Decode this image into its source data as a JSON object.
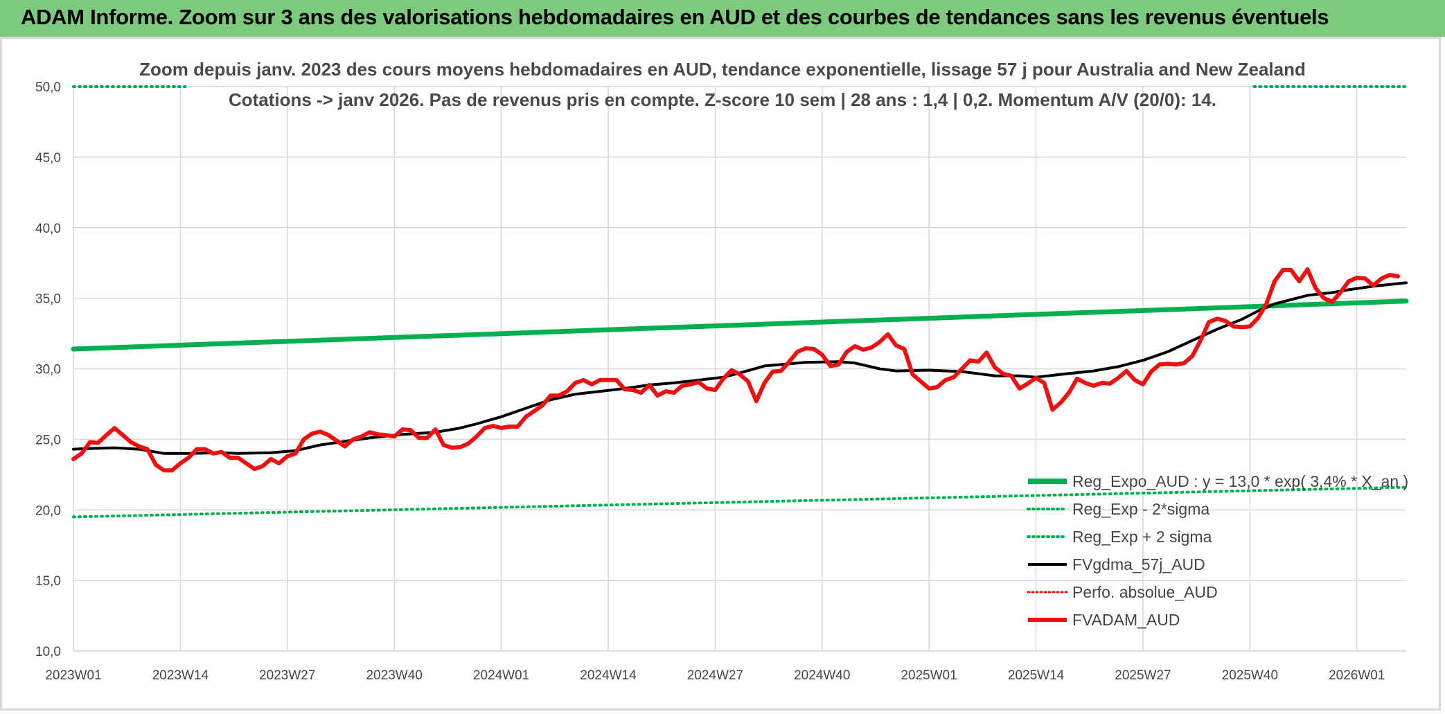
{
  "header": {
    "title": "ADAM Informe. Zoom sur 3 ans des valorisations hebdomadaires en AUD et des courbes de tendances sans les revenus éventuels"
  },
  "colors": {
    "header_bg": "#7dc97d",
    "reg": "#00b050",
    "fv": "#000000",
    "adam": "#ee1111",
    "grid": "#d9d9d9"
  },
  "chart_data": {
    "type": "line",
    "title": "Zoom depuis janv. 2023 des cours moyens hebdomadaires en AUD, tendance exponentielle, lissage 57 j pour Australia and New Zealand",
    "subtitle": "Cotations -> janv 2026. Pas de revenus pris en compte. Z-score 10 sem | 28 ans : 1,4 | 0,2. Momentum A/V (20/0): 14.",
    "ylim": [
      10,
      50
    ],
    "y_ticks": [
      "10,0",
      "15,0",
      "20,0",
      "25,0",
      "30,0",
      "35,0",
      "40,0",
      "45,0",
      "50,0"
    ],
    "x_ticks": [
      "2023W01",
      "2023W14",
      "2023W27",
      "2023W40",
      "2024W01",
      "2024W14",
      "2024W27",
      "2024W40",
      "2025W01",
      "2025W14",
      "2025W27",
      "2025W40",
      "2026W01"
    ],
    "grid": true,
    "legend_position": "bottom-right",
    "series": [
      {
        "name": "Reg_Expo_AUD : y = 13,0 * exp( 3,4% * X_an )",
        "style": "solid-thick",
        "color": "#00b050",
        "points": [
          [
            0,
            31.4
          ],
          [
            162,
            34.8
          ]
        ]
      },
      {
        "name": "Reg_Exp - 2*sigma",
        "style": "dotted",
        "color": "#00b050",
        "points": [
          [
            0,
            19.5
          ],
          [
            162,
            21.6
          ]
        ]
      },
      {
        "name": "Reg_Exp + 2 sigma",
        "style": "dotted",
        "color": "#00b050",
        "points": [
          [
            0,
            50
          ],
          [
            13.6,
            50
          ],
          null,
          [
            143.5,
            50
          ],
          [
            162,
            50
          ]
        ]
      },
      {
        "name": "FVgdma_57j_AUD",
        "style": "solid",
        "color": "#000000",
        "points": [
          [
            0,
            24.3
          ],
          [
            2,
            24.35
          ],
          [
            5,
            24.4
          ],
          [
            8,
            24.3
          ],
          [
            10,
            24.1
          ],
          [
            11,
            24.0
          ],
          [
            14,
            24.0
          ],
          [
            18,
            24.05
          ],
          [
            20,
            24.0
          ],
          [
            24,
            24.05
          ],
          [
            27,
            24.2
          ],
          [
            30,
            24.6
          ],
          [
            33,
            24.85
          ],
          [
            36,
            25.1
          ],
          [
            40,
            25.35
          ],
          [
            44,
            25.5
          ],
          [
            47,
            25.8
          ],
          [
            49,
            26.1
          ],
          [
            52,
            26.6
          ],
          [
            55,
            27.2
          ],
          [
            58,
            27.8
          ],
          [
            61,
            28.2
          ],
          [
            64,
            28.4
          ],
          [
            67,
            28.6
          ],
          [
            70,
            28.85
          ],
          [
            73,
            29.0
          ],
          [
            76,
            29.2
          ],
          [
            79,
            29.4
          ],
          [
            81,
            29.7
          ],
          [
            84,
            30.2
          ],
          [
            86,
            30.3
          ],
          [
            89,
            30.45
          ],
          [
            93,
            30.5
          ],
          [
            95,
            30.4
          ],
          [
            98,
            30.0
          ],
          [
            100,
            29.85
          ],
          [
            104,
            29.9
          ],
          [
            108,
            29.8
          ],
          [
            112,
            29.5
          ],
          [
            115,
            29.5
          ],
          [
            117,
            29.4
          ],
          [
            120,
            29.6
          ],
          [
            124,
            29.85
          ],
          [
            127,
            30.15
          ],
          [
            130,
            30.6
          ],
          [
            133,
            31.2
          ],
          [
            136,
            32.0
          ],
          [
            139,
            32.8
          ],
          [
            142,
            33.5
          ],
          [
            144,
            34.1
          ],
          [
            146,
            34.6
          ],
          [
            148,
            34.9
          ],
          [
            150,
            35.2
          ],
          [
            153,
            35.4
          ],
          [
            155,
            35.6
          ],
          [
            158,
            35.85
          ],
          [
            162,
            36.1
          ]
        ]
      },
      {
        "name": "Perfo. absolue_AUD",
        "style": "dotted",
        "color": "#ee1111",
        "points": []
      },
      {
        "name": "FVADAM_AUD",
        "style": "solid-thick",
        "color": "#ee1111",
        "points": [
          [
            0,
            23.6
          ],
          [
            1,
            24.0
          ],
          [
            2,
            24.8
          ],
          [
            3,
            24.75
          ],
          [
            4,
            25.3
          ],
          [
            5,
            25.8
          ],
          [
            6,
            25.3
          ],
          [
            7,
            24.8
          ],
          [
            8,
            24.5
          ],
          [
            9,
            24.3
          ],
          [
            10,
            23.2
          ],
          [
            11,
            22.8
          ],
          [
            12,
            22.8
          ],
          [
            13,
            23.3
          ],
          [
            14,
            23.7
          ],
          [
            15,
            24.3
          ],
          [
            16,
            24.3
          ],
          [
            17,
            24.0
          ],
          [
            18,
            24.1
          ],
          [
            19,
            23.7
          ],
          [
            20,
            23.7
          ],
          [
            21,
            23.3
          ],
          [
            22,
            22.9
          ],
          [
            23,
            23.1
          ],
          [
            24,
            23.6
          ],
          [
            25,
            23.3
          ],
          [
            26,
            23.8
          ],
          [
            27,
            24.0
          ],
          [
            28,
            25.0
          ],
          [
            29,
            25.4
          ],
          [
            30,
            25.55
          ],
          [
            31,
            25.3
          ],
          [
            32,
            24.9
          ],
          [
            33,
            24.5
          ],
          [
            34,
            25.0
          ],
          [
            35,
            25.2
          ],
          [
            36,
            25.5
          ],
          [
            37,
            25.35
          ],
          [
            38,
            25.3
          ],
          [
            39,
            25.2
          ],
          [
            40,
            25.7
          ],
          [
            41,
            25.65
          ],
          [
            42,
            25.1
          ],
          [
            43,
            25.1
          ],
          [
            44,
            25.7
          ],
          [
            45,
            24.6
          ],
          [
            46,
            24.4
          ],
          [
            47,
            24.45
          ],
          [
            48,
            24.7
          ],
          [
            49,
            25.2
          ],
          [
            50,
            25.8
          ],
          [
            51,
            25.95
          ],
          [
            52,
            25.8
          ],
          [
            53,
            25.9
          ],
          [
            54,
            25.9
          ],
          [
            55,
            26.6
          ],
          [
            56,
            27.0
          ],
          [
            57,
            27.4
          ],
          [
            58,
            28.1
          ],
          [
            59,
            28.1
          ],
          [
            60,
            28.4
          ],
          [
            61,
            29.0
          ],
          [
            62,
            29.2
          ],
          [
            63,
            28.9
          ],
          [
            64,
            29.2
          ],
          [
            65,
            29.2
          ],
          [
            66,
            29.2
          ],
          [
            67,
            28.55
          ],
          [
            68,
            28.5
          ],
          [
            69,
            28.3
          ],
          [
            70,
            28.85
          ],
          [
            71,
            28.1
          ],
          [
            72,
            28.4
          ],
          [
            73,
            28.3
          ],
          [
            74,
            28.8
          ],
          [
            75,
            28.9
          ],
          [
            76,
            29.05
          ],
          [
            77,
            28.6
          ],
          [
            78,
            28.5
          ],
          [
            79,
            29.3
          ],
          [
            80,
            29.9
          ],
          [
            81,
            29.6
          ],
          [
            82,
            29.1
          ],
          [
            83,
            27.7
          ],
          [
            84,
            29.0
          ],
          [
            85,
            29.8
          ],
          [
            86,
            29.85
          ],
          [
            87,
            30.5
          ],
          [
            88,
            31.2
          ],
          [
            89,
            31.45
          ],
          [
            90,
            31.4
          ],
          [
            91,
            31.0
          ],
          [
            92,
            30.2
          ],
          [
            93,
            30.3
          ],
          [
            94,
            31.2
          ],
          [
            95,
            31.6
          ],
          [
            96,
            31.35
          ],
          [
            97,
            31.5
          ],
          [
            98,
            31.9
          ],
          [
            99,
            32.45
          ],
          [
            100,
            31.65
          ],
          [
            101,
            31.4
          ],
          [
            102,
            29.6
          ],
          [
            103,
            29.1
          ],
          [
            104,
            28.6
          ],
          [
            105,
            28.7
          ],
          [
            106,
            29.2
          ],
          [
            107,
            29.4
          ],
          [
            108,
            30.0
          ],
          [
            109,
            30.6
          ],
          [
            110,
            30.5
          ],
          [
            111,
            31.15
          ],
          [
            112,
            30.1
          ],
          [
            113,
            29.65
          ],
          [
            114,
            29.5
          ],
          [
            115,
            28.6
          ],
          [
            116,
            28.95
          ],
          [
            117,
            29.35
          ],
          [
            118,
            29.0
          ],
          [
            119,
            27.1
          ],
          [
            120,
            27.6
          ],
          [
            121,
            28.3
          ],
          [
            122,
            29.3
          ],
          [
            123,
            29.0
          ],
          [
            124,
            28.8
          ],
          [
            125,
            29.0
          ],
          [
            126,
            28.95
          ],
          [
            127,
            29.35
          ],
          [
            128,
            29.85
          ],
          [
            129,
            29.2
          ],
          [
            130,
            28.9
          ],
          [
            131,
            29.8
          ],
          [
            132,
            30.3
          ],
          [
            133,
            30.35
          ],
          [
            134,
            30.3
          ],
          [
            135,
            30.4
          ],
          [
            136,
            30.9
          ],
          [
            137,
            32.0
          ],
          [
            138,
            33.3
          ],
          [
            139,
            33.55
          ],
          [
            140,
            33.4
          ],
          [
            141,
            33.0
          ],
          [
            142,
            32.95
          ],
          [
            143,
            33.0
          ],
          [
            144,
            33.6
          ],
          [
            145,
            34.6
          ],
          [
            146,
            36.2
          ],
          [
            147,
            37.0
          ],
          [
            148,
            37.0
          ],
          [
            149,
            36.2
          ],
          [
            150,
            37.05
          ],
          [
            151,
            35.7
          ],
          [
            152,
            35.0
          ],
          [
            153,
            34.75
          ],
          [
            154,
            35.4
          ],
          [
            155,
            36.2
          ],
          [
            156,
            36.45
          ],
          [
            157,
            36.4
          ],
          [
            158,
            35.9
          ],
          [
            159,
            36.4
          ],
          [
            160,
            36.65
          ],
          [
            161,
            36.55
          ]
        ]
      }
    ]
  }
}
